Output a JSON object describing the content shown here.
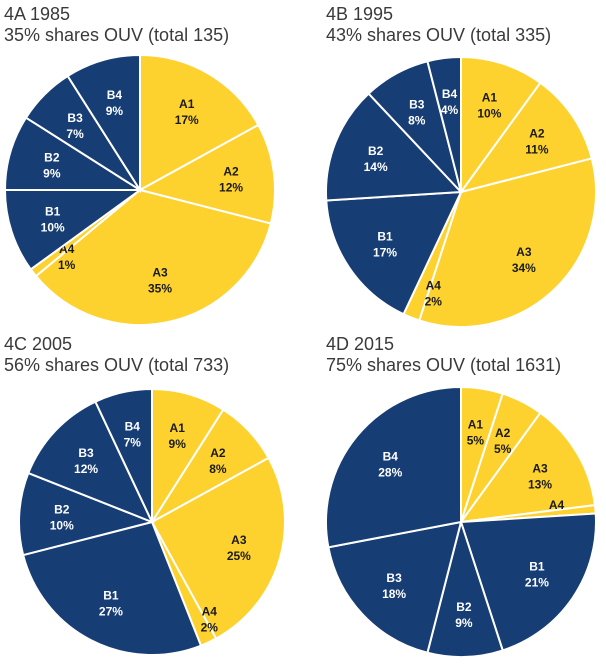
{
  "colors": {
    "A": "#FDD22E",
    "B": "#173D75",
    "edge": "#ffffff",
    "A_text": "#1a1a1a",
    "B_text": "#ffffff"
  },
  "chart_data": [
    {
      "type": "pie",
      "title": "4A 1985",
      "subtitle": "35% shares OUV (total 135)",
      "labels": [
        "A1",
        "A2",
        "A3",
        "A4",
        "B1",
        "B2",
        "B3",
        "B4"
      ],
      "values": [
        17,
        12,
        35,
        1,
        10,
        9,
        7,
        9
      ]
    },
    {
      "type": "pie",
      "title": "4B 1995",
      "subtitle": "43% shares OUV (total 335)",
      "labels": [
        "A1",
        "A2",
        "A3",
        "A4",
        "B1",
        "B2",
        "B3",
        "B4"
      ],
      "values": [
        10,
        11,
        34,
        2,
        17,
        14,
        8,
        4
      ]
    },
    {
      "type": "pie",
      "title": "4C 2005",
      "subtitle": "56% shares OUV (total 733)",
      "labels": [
        "A1",
        "A2",
        "A3",
        "A4",
        "B1",
        "B2",
        "B3",
        "B4"
      ],
      "values": [
        9,
        8,
        25,
        2,
        27,
        10,
        12,
        7
      ]
    },
    {
      "type": "pie",
      "title": "4D 2015",
      "subtitle": "75% shares OUV (total 1631)",
      "labels": [
        "A1",
        "A2",
        "A3",
        "A4",
        "B1",
        "B2",
        "B3",
        "B4"
      ],
      "values": [
        5,
        5,
        13,
        1,
        21,
        9,
        18,
        28
      ]
    }
  ]
}
